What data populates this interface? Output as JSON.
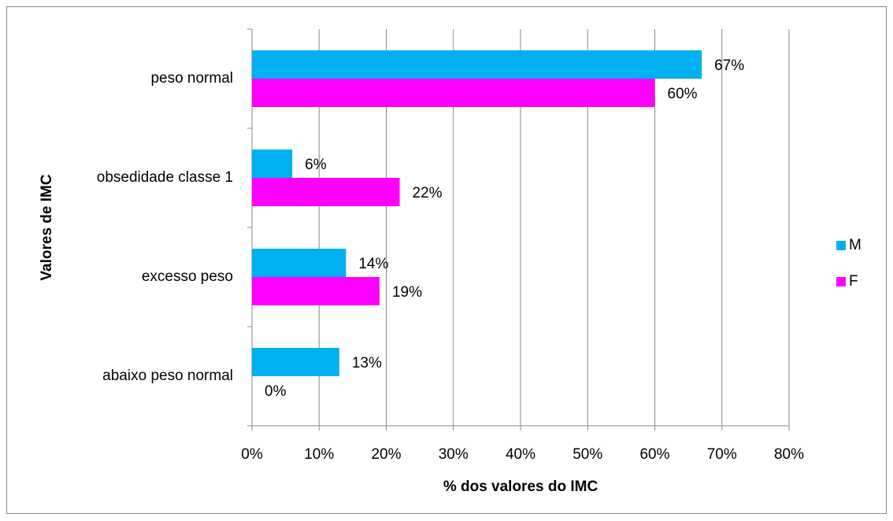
{
  "chart_data": {
    "type": "hbar",
    "x_label": "% dos valores do IMC",
    "y_label": "Valores de IMC",
    "categories": [
      "abaixo peso normal",
      "excesso peso",
      "obsedidade classe 1",
      "peso normal"
    ],
    "series": [
      {
        "name": "M",
        "color": "#00b0f0",
        "values": [
          13,
          14,
          6,
          67
        ],
        "value_labels": [
          "13%",
          "14%",
          "6%",
          "67%"
        ]
      },
      {
        "name": "F",
        "color": "#ff00ff",
        "values": [
          0,
          19,
          22,
          60
        ],
        "value_labels": [
          "0%",
          "19%",
          "22%",
          "60%"
        ]
      }
    ],
    "xlim": [
      0,
      80
    ],
    "xticks": [
      {
        "value": 0,
        "label": "0%"
      },
      {
        "value": 10,
        "label": "10%"
      },
      {
        "value": 20,
        "label": "20%"
      },
      {
        "value": 30,
        "label": "30%"
      },
      {
        "value": 40,
        "label": "40%"
      },
      {
        "value": 50,
        "label": "50%"
      },
      {
        "value": 60,
        "label": "60%"
      },
      {
        "value": 70,
        "label": "70%"
      },
      {
        "value": 80,
        "label": "80%"
      }
    ],
    "grid": true,
    "legend": "right"
  }
}
